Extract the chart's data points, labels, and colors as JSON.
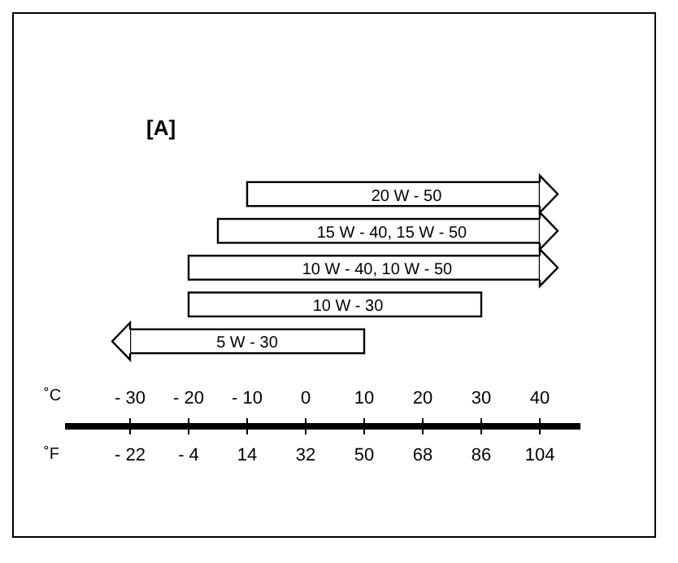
{
  "chart_data": {
    "type": "bar",
    "title": "[A]",
    "orientation": "horizontal",
    "xlabel": "˚C",
    "x2label": "˚F",
    "categories": [
      "20 W - 50",
      "15 W - 40, 15 W - 50",
      "10 W - 40, 10 W - 50",
      "10 W - 30",
      "5 W - 30"
    ],
    "base": [
      -10,
      -15,
      -20,
      -20,
      -30
    ],
    "values": [
      50,
      55,
      60,
      50,
      40
    ],
    "color": "#ffffff",
    "xlim": [
      -30,
      40
    ],
    "xticks": [
      {
        "value": -30,
        "label": "- 30"
      },
      {
        "value": -20,
        "label": "- 20"
      },
      {
        "value": -10,
        "label": "- 10"
      },
      0,
      10,
      20,
      30,
      40
    ],
    "x2lim": [
      -42,
      116.5
    ],
    "x2ticks": [
      {
        "value": -22,
        "label": "- 22"
      },
      {
        "value": -4,
        "label": "- 4"
      },
      14,
      32,
      50,
      68,
      86,
      104
    ]
  }
}
